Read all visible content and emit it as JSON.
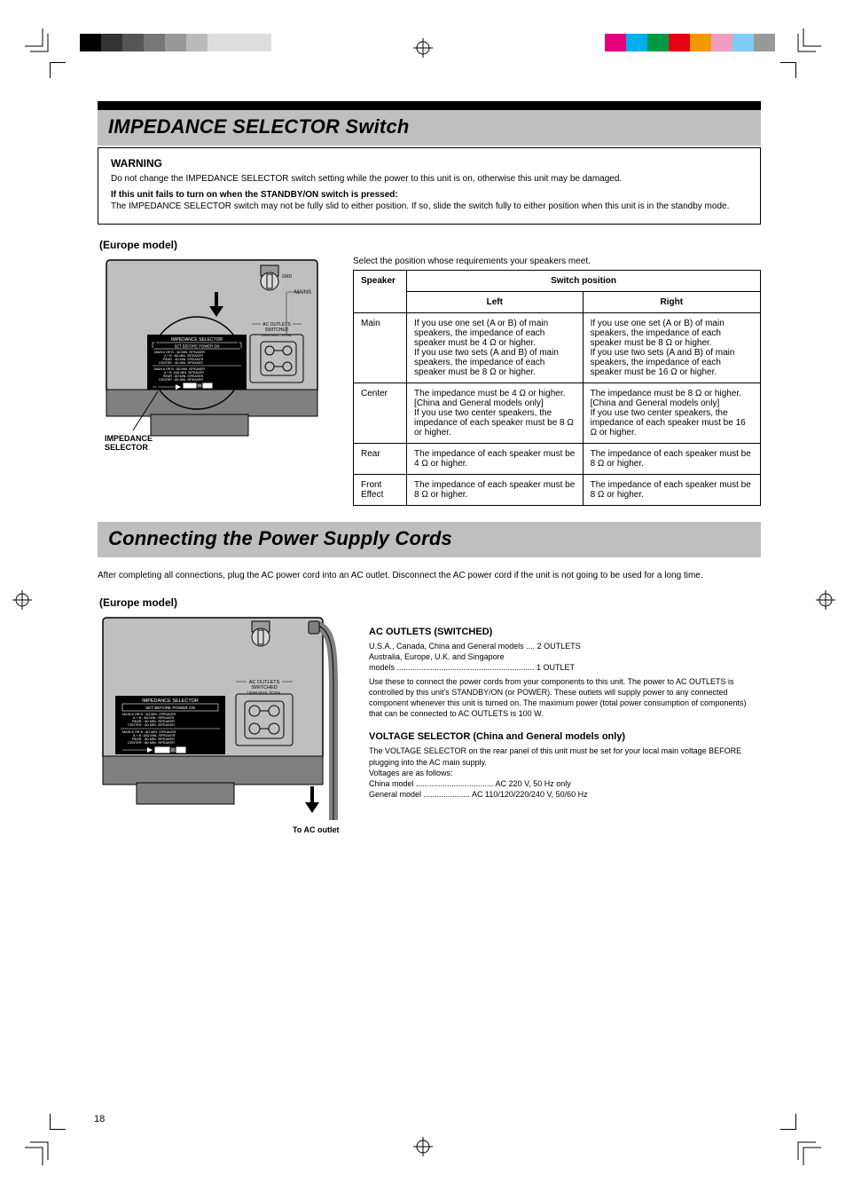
{
  "colors": {
    "heading_bg": "#bfbfbf",
    "black": "#000000",
    "panel_fill": "#bfbfbf",
    "panel_dark": "#808080",
    "ground_body": "#9a9a9a",
    "magenta": "#e6007e",
    "cyan": "#00aeef",
    "green": "#009944",
    "red": "#e60012",
    "orange": "#f39800",
    "pink": "#f19ec2",
    "lightblue": "#7ecef4",
    "grey_l1": "#333333",
    "grey_l2": "#555555",
    "grey_l3": "#777777",
    "grey_l4": "#999999",
    "grey_l5": "#bbbbbb",
    "grey_l6": "#dddddd"
  },
  "sections": {
    "title1": "IMPEDANCE SELECTOR Switch",
    "title2": "Connecting the Power Supply Cords"
  },
  "warning": {
    "label": "WARNING",
    "p1": "Do not change the IMPEDANCE SELECTOR switch setting while the power to this unit is on, otherwise this unit may be damaged.",
    "p2_bold": "If this unit fails to turn on when the STANDBY/ON switch is pressed:",
    "p2": "The IMPEDANCE SELECTOR switch may not be fully slid to either position. If so, slide the switch fully to either position when this unit is in the standby mode."
  },
  "caption1": "(Europe model)",
  "selector_block": {
    "header": "IMPEDANCE SELECTOR",
    "header2": "SET BEFORE POWER ON",
    "rows_left": [
      [
        "MAIN A OR B",
        ": 4",
        "MIN. /SPEAKER"
      ],
      [
        "A",
        "+",
        "B",
        ": 8",
        "MIN. /SPEAKER"
      ],
      [
        "REAR",
        ": 4",
        "MIN. /SPEAKER"
      ],
      [
        "CENTER",
        ": 4",
        "MIN. /SPEAKER"
      ]
    ],
    "rows_right": [
      [
        "MAIN A OR B",
        ": 8",
        "MIN. /SPEAKER"
      ],
      [
        "A",
        "+",
        "B",
        ":16",
        "MIN. /SPEAKER"
      ],
      [
        "REAR",
        ": 8",
        "MIN. /SPEAKER"
      ],
      [
        "CENTER",
        ": 8",
        "MIN. /SPEAKER"
      ]
    ]
  },
  "select_line": "Select the position whose requirements your speakers meet.",
  "table": {
    "headers": [
      "Speaker",
      "Switch position",
      ""
    ],
    "rows": [
      {
        "speaker": "Main",
        "left": "If you use one set (A or B) of main speakers, the impedance of each speaker must be 4 Ω or higher.\nIf you use two sets (A and B) of main speakers, the impedance of each speaker must be 8 Ω or higher.",
        "right": "If you use one set (A or B) of main speakers, the impedance of each speaker must be 8 Ω or higher.\nIf you use two sets (A and B) of main speakers, the impedance of each speaker must be 16 Ω or higher.",
        "left_header": "Left",
        "right_header": "Right"
      },
      {
        "speaker": "Center",
        "left": "The impedance must be 4 Ω or higher.\n[China and General models only]\nIf you use two center speakers, the impedance of each speaker must be 8 Ω or higher.",
        "right": "The impedance must be 8 Ω or higher.\n[China and General models only]\nIf you use two center speakers, the impedance of each speaker must be 16 Ω or higher."
      },
      {
        "speaker": "Rear",
        "left": "The impedance of each speaker must be 4 Ω or higher.",
        "right": "The impedance of each speaker must be 8 Ω or higher."
      },
      {
        "speaker": "Front Effect",
        "left": "The impedance of each speaker must be 8 Ω or higher.",
        "right": "The impedance of each speaker must be 8 Ω or higher."
      }
    ]
  },
  "power": {
    "intro": "After completing all connections, plug the AC power cord into an AC outlet. Disconnect the AC power cord if the unit is not going to be used for a long time.",
    "caption": "(Europe model)",
    "sub1": "AC OUTLETS (SWITCHED)",
    "sub1_body1": "U.S.A., Canada, China and General models .... 2 OUTLETS\nAustralia, Europe, U.K. and Singapore\n   models .............................................................. 1 OUTLET",
    "sub1_body2": "Use these to connect the power cords from your components to this unit. The power to AC OUTLETS is controlled by this unit's STANDBY/ON (or POWER). These outlets will supply power to any connected component whenever this unit is turned on. The maximum power (total power consumption of components) that can be connected to AC OUTLETS is 100 W.",
    "sub2": "VOLTAGE SELECTOR (China and General models only)",
    "sub2_body": "The VOLTAGE SELECTOR on the rear panel of this unit must be set for your local main voltage BEFORE plugging into the AC main supply.\nVoltages are as follows:\nChina model ................................... AC 220 V, 50 Hz only\nGeneral model ..................... AC 110/120/220/240 V, 50/60 Hz"
  },
  "diagram_labels": {
    "ground": "GND",
    "mains": "MAINS",
    "outlets_line1": "AC OUTLETS",
    "outlets_line2": "SWITCHED",
    "outlets_line3": "100W MAX. TOTAL",
    "selector": "IMPEDANCE SELECTOR",
    "plug_note": "To AC outlet",
    "switch_tag": "IMPEDANCE SELECTOR"
  },
  "page_number": "18"
}
